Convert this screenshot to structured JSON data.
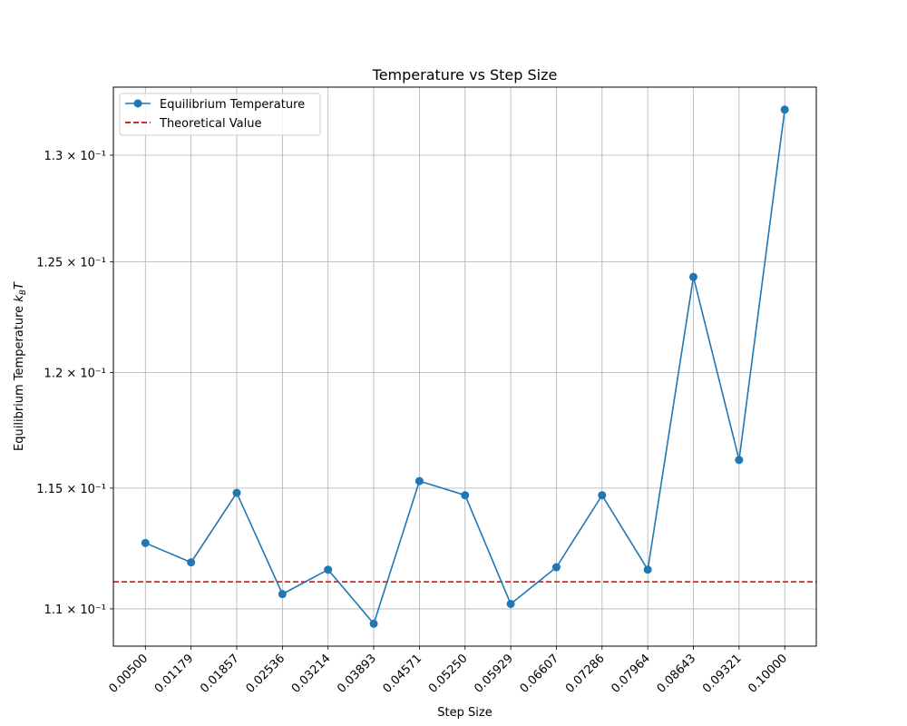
{
  "chart_data": {
    "type": "line",
    "title": "Temperature vs Step Size",
    "xlabel": "Step Size",
    "ylabel": "Equilibrium Temperature k_B T",
    "y_scale": "log",
    "grid": true,
    "legend_position": "top-left",
    "ylim": [
      0.1085,
      0.1333
    ],
    "categories": [
      "0.00500",
      "0.01179",
      "0.01857",
      "0.02536",
      "0.03214",
      "0.03893",
      "0.04571",
      "0.05250",
      "0.05929",
      "0.06607",
      "0.07286",
      "0.07964",
      "0.08643",
      "0.09321",
      "0.10000"
    ],
    "y_ticks": [
      {
        "value": 0.11,
        "label": "1.1 × 10⁻¹"
      },
      {
        "value": 0.115,
        "label": "1.15 × 10⁻¹"
      },
      {
        "value": 0.12,
        "label": "1.2 × 10⁻¹"
      },
      {
        "value": 0.125,
        "label": "1.25 × 10⁻¹"
      },
      {
        "value": 0.13,
        "label": "1.3 × 10⁻¹"
      }
    ],
    "series": [
      {
        "name": "Equilibrium Temperature",
        "color": "#1f77b4",
        "style": "solid-with-markers",
        "values": [
          0.1127,
          0.1119,
          0.1148,
          0.1106,
          0.1116,
          0.1094,
          0.1153,
          0.1147,
          0.1102,
          0.1117,
          0.1147,
          0.1116,
          0.1243,
          0.1162,
          0.1322
        ]
      },
      {
        "name": "Theoretical Value",
        "color": "#d62728",
        "style": "dashed",
        "constant": 0.1111
      }
    ]
  }
}
